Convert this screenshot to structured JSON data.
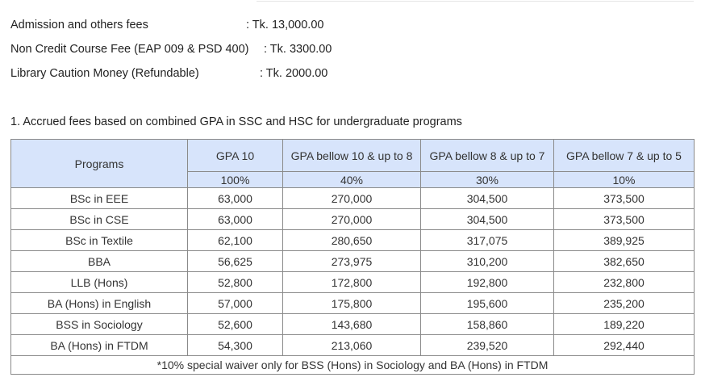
{
  "fees": [
    {
      "label": "Admission and others fees",
      "value": ": Tk. 13,000.00"
    },
    {
      "label": "Non Credit Course Fee (EAP 009 & PSD 400)",
      "value": ": Tk.  3300.00"
    },
    {
      "label": "Library Caution Money (Refundable)",
      "value": ": Tk.  2000.00"
    }
  ],
  "section_title": "1. Accrued fees based on combined GPA in SSC and HSC for undergraduate programs",
  "table": {
    "programs_header": "Programs",
    "gpa_headers": [
      "GPA 10",
      "GPA bellow 10 & up to 8",
      "GPA bellow 8 & up to 7",
      "GPA bellow 7 & up to 5"
    ],
    "waiver_headers": [
      "100%",
      "40%",
      "30%",
      "10%"
    ],
    "rows": [
      {
        "program": "BSc in EEE",
        "values": [
          "63,000",
          "270,000",
          "304,500",
          "373,500"
        ]
      },
      {
        "program": "BSc in CSE",
        "values": [
          "63,000",
          "270,000",
          "304,500",
          "373,500"
        ]
      },
      {
        "program": "BSc in Textile",
        "values": [
          "62,100",
          "280,650",
          "317,075",
          "389,925"
        ]
      },
      {
        "program": "BBA",
        "values": [
          "56,625",
          "273,975",
          "310,200",
          "382,650"
        ]
      },
      {
        "program": "LLB (Hons)",
        "values": [
          "52,800",
          "172,800",
          "192,800",
          "232,800"
        ]
      },
      {
        "program": "BA (Hons) in English",
        "values": [
          "57,000",
          "175,800",
          "195,600",
          "235,200"
        ]
      },
      {
        "program": "BSS in Sociology",
        "values": [
          "52,600",
          "143,680",
          "158,860",
          "189,220"
        ]
      },
      {
        "program": "BA (Hons) in FTDM",
        "values": [
          "54,300",
          "213,060",
          "239,520",
          "292,440"
        ]
      }
    ],
    "footnote": "*10% special waiver only for BSS (Hons) in Sociology and BA (Hons) in FTDM"
  },
  "colors": {
    "header_bg": "#d7e4fb",
    "border": "#8a8a8a"
  }
}
